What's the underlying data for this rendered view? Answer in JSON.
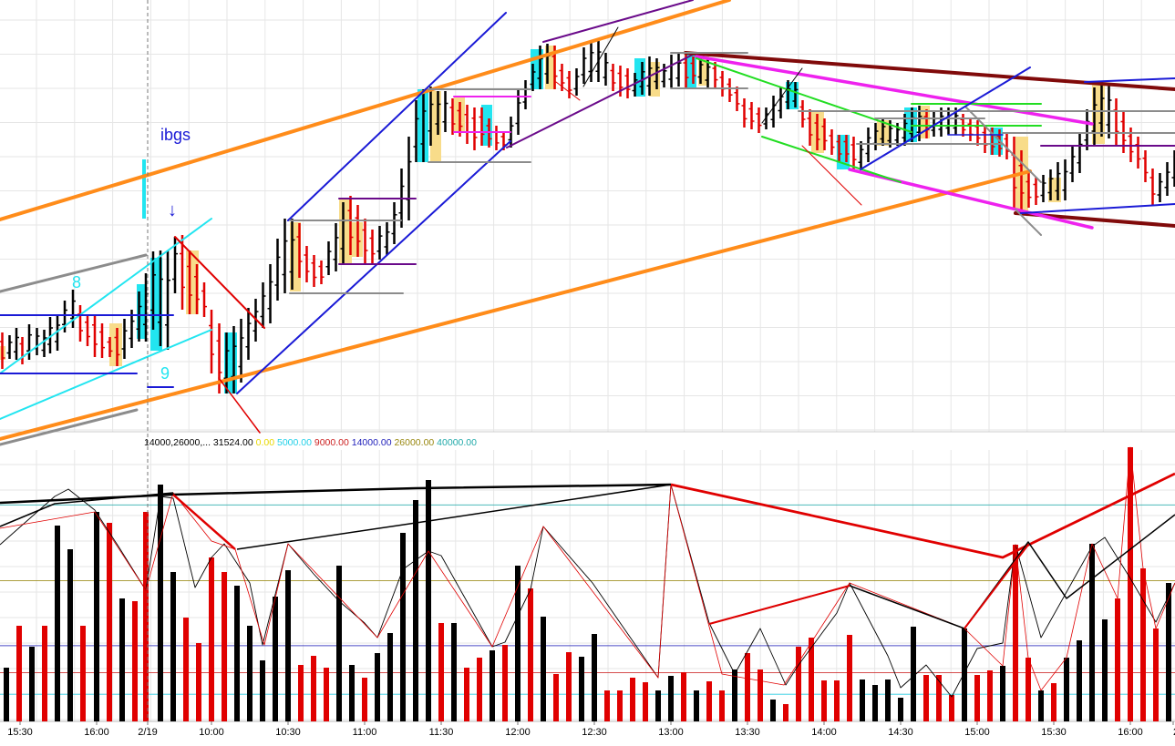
{
  "colors": {
    "grid": "#e6e6e6",
    "up_bar": "#000000",
    "down_bar": "#e00000",
    "cyan": "#22e5f0",
    "tan": "#f8dc8a",
    "orange": "#ff8c1a",
    "blue": "#1a1ad6",
    "purple": "#6a0a8a",
    "magenta": "#ee22ee",
    "green": "#22dd22",
    "maroon": "#800a0a",
    "gray": "#8c8c8c",
    "teal_line": "#33bbaa",
    "olive_line": "#999933",
    "navy_line": "#3333aa"
  },
  "annotations": {
    "ibgs": "ibgs",
    "label_8": "8",
    "label_9": "9",
    "arrow": "↓"
  },
  "legend": {
    "prefix": "14000,26000,...",
    "current": "31524.00",
    "levels": [
      {
        "text": "0.00",
        "color": "#e8d800"
      },
      {
        "text": "5000.00",
        "color": "#22d0e8"
      },
      {
        "text": "9000.00",
        "color": "#cc2222"
      },
      {
        "text": "14000.00",
        "color": "#2222bb"
      },
      {
        "text": "26000.00",
        "color": "#998811"
      },
      {
        "text": "40000.00",
        "color": "#22aaaa"
      }
    ]
  },
  "chart_data": {
    "type": "bar",
    "x_ticks": [
      "15:30",
      "16:00",
      "2/19",
      "10:00",
      "10:30",
      "11:00",
      "11:30",
      "12:00",
      "12:30",
      "13:00",
      "13:30",
      "14:00",
      "14:30",
      "15:00",
      "15:30",
      "16:00",
      "2"
    ],
    "price_bars": [
      [
        -7.0,
        360,
        390,
        2
      ],
      [
        2.5,
        365,
        405,
        2
      ],
      [
        10.5,
        368,
        394,
        1
      ],
      [
        18.0,
        360,
        395,
        1
      ],
      [
        24.5,
        370,
        400,
        2
      ],
      [
        32.0,
        356,
        395,
        1
      ],
      [
        40.5,
        360,
        390,
        1
      ],
      [
        48.5,
        362,
        392,
        1
      ],
      [
        55.0,
        348,
        388,
        1
      ],
      [
        63.0,
        345,
        385,
        1
      ],
      [
        71.0,
        330,
        365,
        1
      ],
      [
        80.0,
        318,
        360,
        1
      ],
      [
        88.0,
        335,
        375,
        2
      ],
      [
        96.0,
        345,
        380,
        2
      ],
      [
        104.0,
        345,
        392,
        2
      ],
      [
        112.0,
        355,
        393,
        2
      ],
      [
        120.5,
        370,
        392,
        2
      ],
      [
        128.5,
        360,
        402,
        2
      ],
      [
        136.5,
        350,
        394,
        1
      ],
      [
        144.5,
        340,
        382,
        1
      ],
      [
        152.5,
        320,
        375,
        1
      ],
      [
        160.0,
        300,
        375,
        1
      ],
      [
        168.0,
        276,
        362,
        1
      ],
      [
        176.0,
        275,
        380,
        1
      ],
      [
        184.0,
        275,
        384,
        1
      ],
      [
        192.0,
        260,
        322,
        1
      ],
      [
        200.0,
        258,
        340,
        2
      ],
      [
        208.0,
        275,
        345,
        2
      ],
      [
        216.0,
        290,
        345,
        2
      ],
      [
        224.0,
        310,
        348,
        2
      ],
      [
        232.0,
        340,
        410,
        2
      ],
      [
        240.5,
        355,
        432,
        2
      ],
      [
        248.5,
        365,
        432,
        1
      ],
      [
        256.5,
        358,
        432,
        1
      ],
      [
        264.5,
        350,
        420,
        1
      ],
      [
        272.5,
        338,
        395,
        1
      ],
      [
        280.5,
        328,
        375,
        1
      ],
      [
        288.5,
        310,
        360,
        1
      ],
      [
        296.5,
        290,
        355,
        1
      ],
      [
        304.5,
        262,
        330,
        1
      ],
      [
        312.5,
        240,
        322,
        1
      ],
      [
        320.5,
        240,
        318,
        1
      ],
      [
        328.5,
        245,
        305,
        2
      ],
      [
        336.5,
        270,
        310,
        2
      ],
      [
        344.5,
        280,
        315,
        2
      ],
      [
        352.5,
        286,
        312,
        2
      ],
      [
        360.5,
        265,
        302,
        1
      ],
      [
        368.5,
        245,
        298,
        1
      ],
      [
        376.5,
        222,
        290,
        1
      ],
      [
        384.5,
        215,
        280,
        2
      ],
      [
        392.5,
        225,
        282,
        2
      ],
      [
        400.5,
        240,
        290,
        2
      ],
      [
        408.5,
        252,
        290,
        2
      ],
      [
        416.5,
        248,
        285,
        1
      ],
      [
        424.5,
        244,
        280,
        1
      ],
      [
        432.5,
        222,
        268,
        1
      ],
      [
        440.5,
        185,
        250,
        1
      ],
      [
        448.5,
        150,
        242,
        1
      ],
      [
        456.5,
        110,
        178,
        1
      ],
      [
        464.5,
        98,
        178,
        1
      ],
      [
        472.5,
        95,
        160,
        1
      ],
      [
        480.5,
        100,
        148,
        1
      ],
      [
        488.5,
        100,
        145,
        1
      ],
      [
        496.5,
        108,
        148,
        2
      ],
      [
        504.5,
        112,
        150,
        2
      ],
      [
        512.5,
        115,
        158,
        2
      ],
      [
        520.5,
        118,
        165,
        2
      ],
      [
        528.5,
        118,
        160,
        2
      ],
      [
        536.5,
        130,
        162,
        2
      ],
      [
        544.5,
        138,
        165,
        2
      ],
      [
        552.5,
        145,
        165,
        2
      ],
      [
        560.5,
        128,
        162,
        1
      ],
      [
        568.5,
        98,
        148,
        1
      ],
      [
        576.5,
        88,
        120,
        1
      ],
      [
        584.5,
        70,
        100,
        1
      ],
      [
        592.5,
        50,
        98,
        1
      ],
      [
        600.5,
        48,
        92,
        1
      ],
      [
        608.5,
        50,
        98,
        2
      ],
      [
        616.5,
        70,
        100,
        2
      ],
      [
        624.5,
        78,
        108,
        2
      ],
      [
        632.5,
        75,
        105,
        1
      ],
      [
        640.5,
        52,
        92,
        1
      ],
      [
        648.5,
        44,
        90,
        1
      ],
      [
        656.5,
        43,
        90,
        1
      ],
      [
        664.5,
        58,
        94,
        1
      ],
      [
        672.5,
        70,
        100,
        2
      ],
      [
        680.5,
        72,
        106,
        2
      ],
      [
        688.5,
        75,
        108,
        2
      ],
      [
        696.5,
        80,
        106,
        1
      ],
      [
        704.5,
        68,
        104,
        1
      ],
      [
        712.5,
        62,
        105,
        1
      ],
      [
        720.5,
        64,
        98,
        1
      ],
      [
        728.5,
        70,
        96,
        1
      ],
      [
        736.5,
        60,
        96,
        1
      ],
      [
        744.5,
        58,
        95,
        1
      ],
      [
        752.5,
        60,
        96,
        2
      ],
      [
        760.5,
        62,
        92,
        2
      ],
      [
        768.5,
        62,
        92,
        1
      ],
      [
        776.5,
        64,
        96,
        1
      ],
      [
        784.5,
        68,
        96,
        2
      ],
      [
        792.5,
        78,
        106,
        2
      ],
      [
        800.5,
        86,
        112,
        2
      ],
      [
        808.5,
        95,
        122,
        2
      ],
      [
        816.5,
        108,
        140,
        2
      ],
      [
        824.5,
        112,
        142,
        2
      ],
      [
        832.5,
        118,
        146,
        2
      ],
      [
        840.5,
        118,
        142,
        1
      ],
      [
        848.5,
        105,
        140,
        1
      ],
      [
        856.5,
        96,
        130,
        1
      ],
      [
        864.5,
        88,
        120,
        1
      ],
      [
        872.5,
        90,
        118,
        1
      ],
      [
        880.5,
        110,
        140,
        2
      ],
      [
        888.5,
        120,
        160,
        2
      ],
      [
        896.5,
        125,
        165,
        2
      ],
      [
        904.5,
        130,
        165,
        2
      ],
      [
        912.5,
        142,
        170,
        2
      ],
      [
        920.5,
        148,
        178,
        2
      ],
      [
        928.5,
        148,
        178,
        2
      ],
      [
        936.5,
        150,
        186,
        2
      ],
      [
        944.5,
        155,
        186,
        1
      ],
      [
        952.5,
        140,
        178,
        1
      ],
      [
        960.5,
        135,
        165,
        1
      ],
      [
        968.5,
        130,
        160,
        1
      ],
      [
        976.5,
        132,
        162,
        1
      ],
      [
        984.5,
        135,
        160,
        1
      ],
      [
        992.5,
        125,
        160,
        1
      ],
      [
        1000.5,
        118,
        156,
        1
      ],
      [
        1008.5,
        116,
        155,
        1
      ],
      [
        1016.5,
        120,
        152,
        2
      ],
      [
        1024.5,
        122,
        150,
        1
      ],
      [
        1032.5,
        118,
        150,
        1
      ],
      [
        1040.5,
        118,
        148,
        1
      ],
      [
        1048.5,
        118,
        148,
        1
      ],
      [
        1056.5,
        125,
        150,
        2
      ],
      [
        1064.5,
        130,
        155,
        2
      ],
      [
        1072.5,
        132,
        160,
        2
      ],
      [
        1080.5,
        138,
        168,
        2
      ],
      [
        1088.5,
        140,
        170,
        2
      ],
      [
        1096.5,
        142,
        172,
        2
      ],
      [
        1104.5,
        145,
        175,
        2
      ],
      [
        1112.5,
        150,
        230,
        2
      ],
      [
        1120.5,
        165,
        232,
        2
      ],
      [
        1128.5,
        190,
        228,
        2
      ],
      [
        1136.5,
        195,
        225,
        2
      ],
      [
        1144.5,
        192,
        222,
        1
      ],
      [
        1152.5,
        186,
        220,
        1
      ],
      [
        1160.5,
        178,
        220,
        1
      ],
      [
        1168.5,
        175,
        220,
        1
      ],
      [
        1176.5,
        160,
        200,
        1
      ],
      [
        1184.5,
        145,
        190,
        1
      ],
      [
        1192.5,
        120,
        165,
        1
      ],
      [
        1200.5,
        96,
        160,
        1
      ],
      [
        1208.5,
        90,
        150,
        1
      ],
      [
        1216.5,
        92,
        152,
        1
      ],
      [
        1224.5,
        108,
        160,
        2
      ],
      [
        1232.5,
        122,
        168,
        2
      ],
      [
        1240.5,
        140,
        178,
        2
      ],
      [
        1248.5,
        150,
        185,
        2
      ],
      [
        1256.5,
        165,
        200,
        2
      ],
      [
        1264.5,
        185,
        225,
        2
      ],
      [
        1272.5,
        190,
        222,
        1
      ],
      [
        1280.5,
        178,
        215,
        1
      ],
      [
        1288.5,
        165,
        205,
        1
      ]
    ],
    "volume_bars": [
      [
        7,
        733,
        1
      ],
      [
        21,
        687,
        2
      ],
      [
        35,
        710,
        1
      ],
      [
        49,
        687,
        2
      ],
      [
        63,
        577,
        1
      ],
      [
        77,
        603,
        1
      ],
      [
        91,
        687,
        2
      ],
      [
        106,
        562,
        1
      ],
      [
        120,
        574,
        2
      ],
      [
        134,
        657,
        1
      ],
      [
        148,
        660,
        2
      ],
      [
        160,
        562,
        2
      ],
      [
        176,
        532,
        1
      ],
      [
        190,
        628,
        1
      ],
      [
        204,
        678,
        2
      ],
      [
        218,
        706,
        2
      ],
      [
        232,
        612,
        2
      ],
      [
        246,
        628,
        2
      ],
      [
        260,
        643,
        1
      ],
      [
        274,
        687,
        1
      ],
      [
        288,
        725,
        1
      ],
      [
        302,
        655,
        1
      ],
      [
        316,
        626,
        1
      ],
      [
        330,
        730,
        2
      ],
      [
        344,
        720,
        2
      ],
      [
        358,
        733,
        2
      ],
      [
        372,
        621,
        1
      ],
      [
        386,
        730,
        1
      ],
      [
        400,
        744,
        2
      ],
      [
        414,
        717,
        1
      ],
      [
        428,
        695,
        1
      ],
      [
        442,
        585,
        1
      ],
      [
        456,
        549,
        1
      ],
      [
        470,
        527,
        1
      ],
      [
        484,
        684,
        2
      ],
      [
        498,
        684,
        1
      ],
      [
        512,
        733,
        2
      ],
      [
        526,
        722,
        2
      ],
      [
        540,
        714,
        1
      ],
      [
        554,
        708,
        2
      ],
      [
        568,
        621,
        1
      ],
      [
        582,
        646,
        2
      ],
      [
        596,
        677,
        1
      ],
      [
        610,
        740,
        2
      ],
      [
        624,
        716,
        2
      ],
      [
        638,
        721,
        1
      ],
      [
        652,
        696,
        1
      ],
      [
        666,
        758,
        2
      ],
      [
        680,
        758,
        2
      ],
      [
        694,
        744,
        2
      ],
      [
        708,
        749,
        2
      ],
      [
        722,
        758,
        1
      ],
      [
        736,
        742,
        1
      ],
      [
        750,
        738,
        2
      ],
      [
        764,
        758,
        1
      ],
      [
        778,
        748,
        2
      ],
      [
        792,
        758,
        2
      ],
      [
        806,
        735,
        1
      ],
      [
        820,
        717,
        2
      ],
      [
        834,
        735,
        2
      ],
      [
        848,
        768,
        1
      ],
      [
        862,
        773,
        2
      ],
      [
        876,
        710,
        2
      ],
      [
        890,
        700,
        2
      ],
      [
        904,
        747,
        2
      ],
      [
        918,
        747,
        2
      ],
      [
        932,
        697,
        2
      ],
      [
        946,
        746,
        1
      ],
      [
        960,
        752,
        1
      ],
      [
        974,
        746,
        1
      ],
      [
        988,
        766,
        1
      ],
      [
        1002,
        688,
        1
      ],
      [
        1016,
        741,
        2
      ],
      [
        1030,
        741,
        2
      ],
      [
        1044,
        763,
        2
      ],
      [
        1058,
        690,
        1
      ],
      [
        1072,
        741,
        2
      ],
      [
        1086,
        736,
        2
      ],
      [
        1100,
        731,
        1
      ],
      [
        1114,
        598,
        2
      ],
      [
        1128,
        722,
        2
      ],
      [
        1142,
        758,
        1
      ],
      [
        1156,
        750,
        2
      ],
      [
        1170,
        722,
        1
      ],
      [
        1184,
        703,
        1
      ],
      [
        1198,
        597,
        1
      ],
      [
        1212,
        680,
        1
      ],
      [
        1226,
        657,
        2
      ],
      [
        1240,
        491,
        2
      ],
      [
        1254,
        624,
        2
      ],
      [
        1268,
        690,
        2
      ],
      [
        1282,
        640,
        1
      ]
    ],
    "volume_levels": [
      5000,
      9000,
      14000,
      26000,
      40000
    ],
    "current_volume": 31524,
    "grid": true,
    "legend_position": "bottom-left-of-price-panel"
  }
}
